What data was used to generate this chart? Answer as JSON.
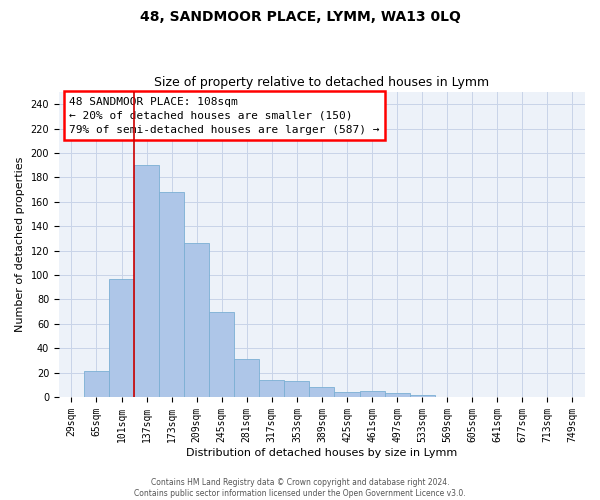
{
  "title": "48, SANDMOOR PLACE, LYMM, WA13 0LQ",
  "subtitle": "Size of property relative to detached houses in Lymm",
  "xlabel": "Distribution of detached houses by size in Lymm",
  "ylabel": "Number of detached properties",
  "categories": [
    "29sqm",
    "65sqm",
    "101sqm",
    "137sqm",
    "173sqm",
    "209sqm",
    "245sqm",
    "281sqm",
    "317sqm",
    "353sqm",
    "389sqm",
    "425sqm",
    "461sqm",
    "497sqm",
    "533sqm",
    "569sqm",
    "605sqm",
    "641sqm",
    "677sqm",
    "713sqm",
    "749sqm"
  ],
  "values": [
    0,
    21,
    97,
    190,
    168,
    126,
    70,
    31,
    14,
    13,
    8,
    4,
    5,
    3,
    2,
    0,
    0,
    0,
    0,
    0,
    0
  ],
  "bar_color": "#aec6e8",
  "bar_edgecolor": "#7bafd4",
  "red_line_color": "#cc0000",
  "annotation_text_line1": "48 SANDMOOR PLACE: 108sqm",
  "annotation_text_line2": "← 20% of detached houses are smaller (150)",
  "annotation_text_line3": "79% of semi-detached houses are larger (587) →",
  "annotation_box_color": "white",
  "annotation_box_edgecolor": "red",
  "ylim": [
    0,
    250
  ],
  "yticks": [
    0,
    20,
    40,
    60,
    80,
    100,
    120,
    140,
    160,
    180,
    200,
    220,
    240
  ],
  "grid_color": "#c8d4e8",
  "background_color": "#edf2f9",
  "footer1": "Contains HM Land Registry data © Crown copyright and database right 2024.",
  "footer2": "Contains public sector information licensed under the Open Government Licence v3.0.",
  "title_fontsize": 10,
  "subtitle_fontsize": 9,
  "axis_label_fontsize": 8,
  "tick_fontsize": 7,
  "annotation_fontsize": 8
}
